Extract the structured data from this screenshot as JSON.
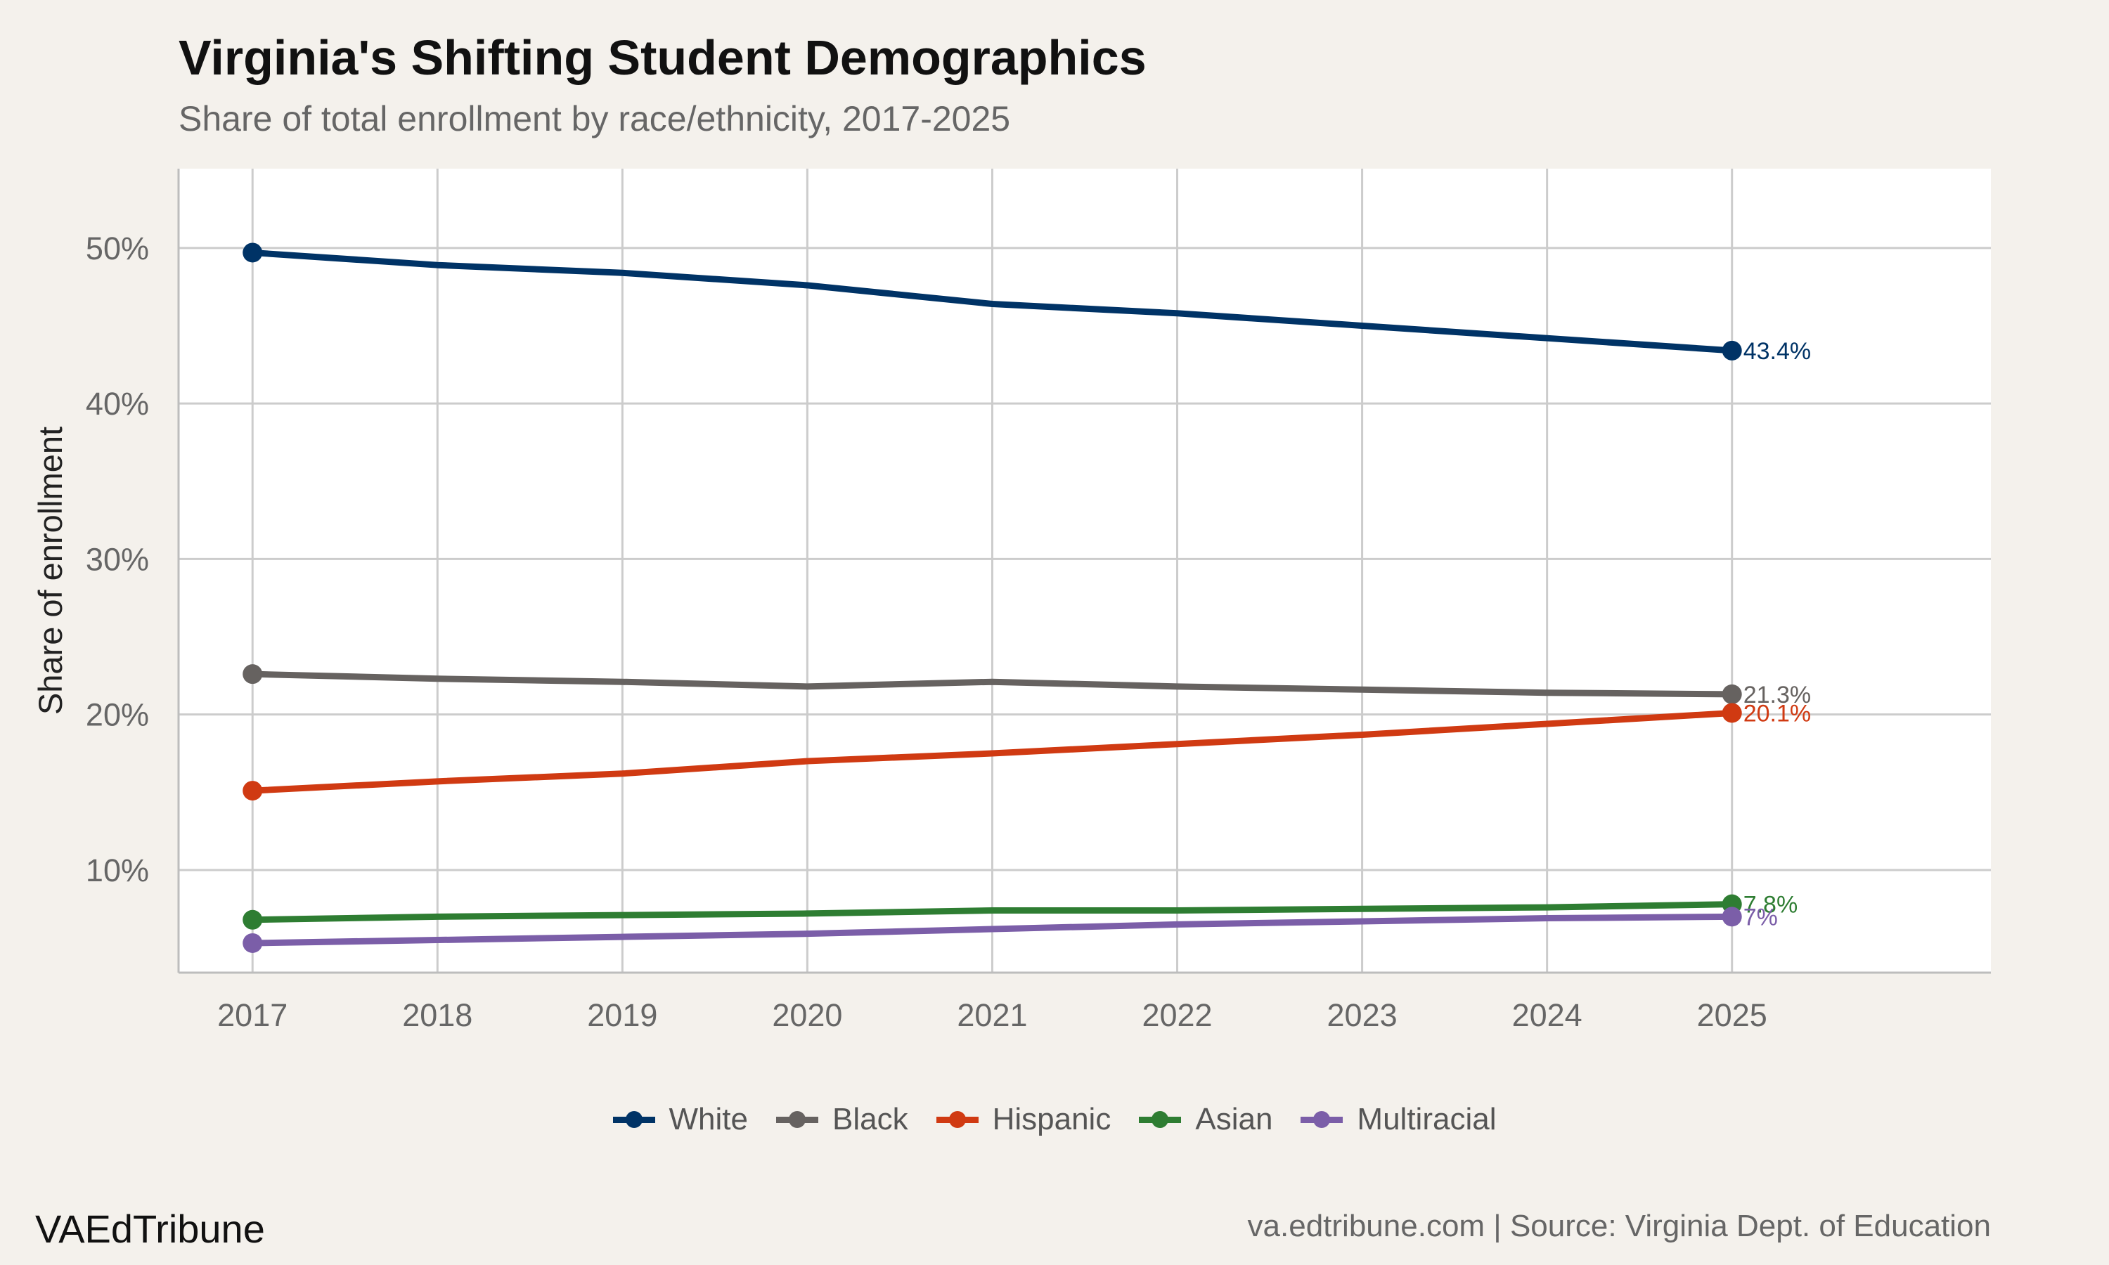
{
  "header": {
    "title": "Virginia's Shifting Student Demographics",
    "subtitle": "Share of total enrollment by race/ethnicity, 2017-2025"
  },
  "footer": {
    "brand": "VAEdTribune",
    "source": "va.edtribune.com | Source: Virginia Dept. of Education"
  },
  "chart_data": {
    "type": "line",
    "title": "Virginia's Shifting Student Demographics",
    "subtitle": "Share of total enrollment by race/ethnicity, 2017-2025",
    "xlabel": "",
    "ylabel": "Share of enrollment",
    "x": [
      2017,
      2018,
      2019,
      2020,
      2021,
      2022,
      2023,
      2024,
      2025
    ],
    "x_tick_labels": [
      "2017",
      "2018",
      "2019",
      "2020",
      "2021",
      "2022",
      "2023",
      "2024",
      "2025"
    ],
    "xlim": [
      2016.6,
      2026.4
    ],
    "ylim": [
      3.4,
      55.1
    ],
    "y_ticks": [
      10,
      20,
      30,
      40,
      50
    ],
    "y_tick_labels": [
      "10%",
      "20%",
      "30%",
      "40%",
      "50%"
    ],
    "grid": true,
    "legend_position": "bottom",
    "series": [
      {
        "name": "White",
        "color": "#003366",
        "values": [
          49.7,
          48.9,
          48.4,
          47.6,
          46.4,
          45.8,
          45.0,
          44.2,
          43.4
        ],
        "end_label": "43.4%"
      },
      {
        "name": "Black",
        "color": "#666260",
        "values": [
          22.6,
          22.3,
          22.1,
          21.8,
          22.1,
          21.8,
          21.6,
          21.4,
          21.3
        ],
        "end_label": "21.3%"
      },
      {
        "name": "Hispanic",
        "color": "#d03a12",
        "values": [
          15.1,
          15.7,
          16.2,
          17.0,
          17.5,
          18.1,
          18.7,
          19.4,
          20.1
        ],
        "end_label": "20.1%"
      },
      {
        "name": "Asian",
        "color": "#2e7d32",
        "values": [
          6.8,
          7.0,
          7.1,
          7.2,
          7.4,
          7.4,
          7.5,
          7.6,
          7.8
        ],
        "end_label": "7.8%"
      },
      {
        "name": "Multiracial",
        "color": "#7b5ea8",
        "values": [
          5.3,
          5.5,
          5.7,
          5.9,
          6.2,
          6.5,
          6.7,
          6.9,
          7.0
        ],
        "end_label": "7%"
      }
    ]
  }
}
